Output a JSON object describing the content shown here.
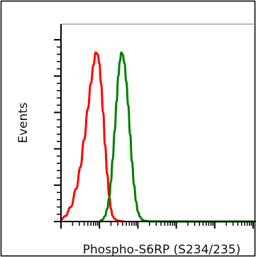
{
  "chart_data": {
    "type": "line",
    "title": "",
    "xlabel": "Phospho-S6RP (S234/235)",
    "ylabel": "Events",
    "xscale": "log",
    "xlim": [
      1,
      100000
    ],
    "ylim": [
      0,
      100
    ],
    "grid": false,
    "legend": "none",
    "series": [
      {
        "color": "#ff0000",
        "x": [
          1,
          1.3,
          1.8,
          2.5,
          3.2,
          4,
          5,
          6,
          7,
          8,
          9,
          10,
          11,
          12.5,
          14,
          16,
          18,
          20,
          22,
          25,
          28,
          32,
          36,
          40,
          45
        ],
        "y": [
          1,
          3,
          8,
          18,
          30,
          45,
          62,
          76,
          86,
          93,
          92,
          87,
          76,
          60,
          42,
          26,
          14,
          7,
          3,
          1.5,
          0.8,
          0.4,
          0.2,
          0.1,
          0
        ]
      },
      {
        "color": "#008000",
        "x": [
          10,
          12,
          14,
          16,
          18,
          20,
          22,
          25,
          28,
          31,
          34,
          37,
          40,
          45,
          50,
          56,
          63,
          70,
          80,
          90,
          100,
          115,
          130,
          150,
          175,
          200,
          250,
          300,
          1000,
          10000,
          100000
        ],
        "y": [
          0,
          1,
          3,
          7,
          13,
          22,
          34,
          50,
          66,
          80,
          88,
          93,
          92,
          87,
          77,
          64,
          48,
          33,
          20,
          11,
          5.5,
          2.5,
          1,
          0.4,
          0.2,
          0.1,
          0.05,
          0.02,
          0,
          0,
          0
        ]
      }
    ]
  }
}
